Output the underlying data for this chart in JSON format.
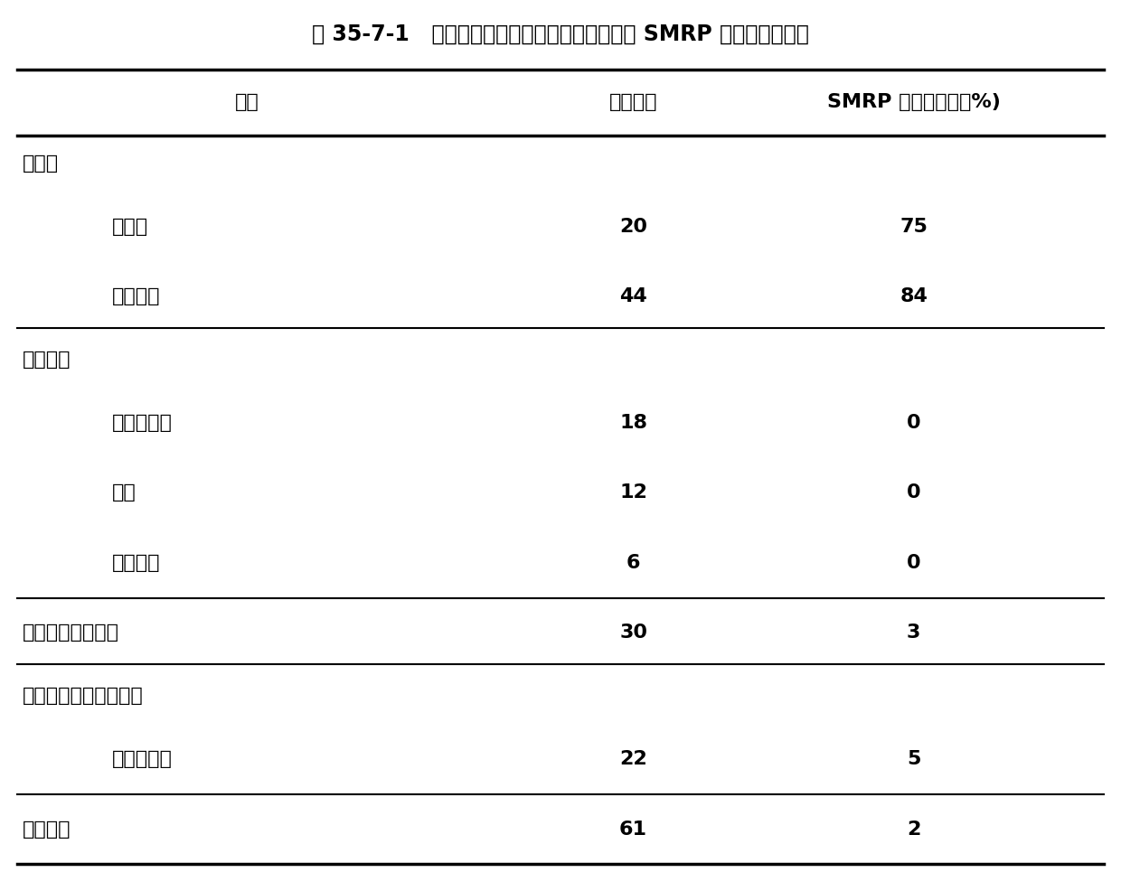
{
  "title": "表 35-7-1   恶性间皮瘤和其它肺及胸膜疾病患者 SMRP 水平增高的频率",
  "col_headers": [
    "疾病",
    "总患者数",
    "SMRP 增高患者数（%)"
  ],
  "rows": [
    {
      "label": "间皮瘤",
      "indent": false,
      "total": "",
      "smrp": "",
      "divider_before": false,
      "divider_after": false
    },
    {
      "label": "诊断时",
      "indent": true,
      "total": "20",
      "smrp": "75",
      "divider_before": false,
      "divider_after": false
    },
    {
      "label": "任何时期",
      "indent": true,
      "total": "44",
      "smrp": "84",
      "divider_before": false,
      "divider_after": true
    },
    {
      "label": "胸膜疾病",
      "indent": false,
      "total": "",
      "smrp": "",
      "divider_before": false,
      "divider_after": false
    },
    {
      "label": "板样或增厚",
      "indent": true,
      "total": "18",
      "smrp": "0",
      "divider_before": false,
      "divider_after": false
    },
    {
      "label": "炎症",
      "indent": true,
      "total": "12",
      "smrp": "0",
      "divider_before": false,
      "divider_after": false
    },
    {
      "label": "其它肿瘤",
      "indent": true,
      "total": "6",
      "smrp": "0",
      "divider_before": false,
      "divider_after": true
    },
    {
      "label": "非累及胸膜的肺癌",
      "indent": false,
      "total": "30",
      "smrp": "3",
      "divider_before": false,
      "divider_after": true
    },
    {
      "label": "非累及胸膜的肺部炎症",
      "indent": false,
      "total": "",
      "smrp": "",
      "divider_before": false,
      "divider_after": false
    },
    {
      "label": "石棉沉滞症",
      "indent": true,
      "total": "22",
      "smrp": "5",
      "divider_before": false,
      "divider_after": true
    },
    {
      "label": "其它炎症",
      "indent": false,
      "total": "61",
      "smrp": "2",
      "divider_before": false,
      "divider_after": false
    }
  ],
  "bg_color": "#ffffff",
  "text_color": "#000000",
  "title_fontsize": 17,
  "header_fontsize": 16,
  "cell_fontsize": 16
}
